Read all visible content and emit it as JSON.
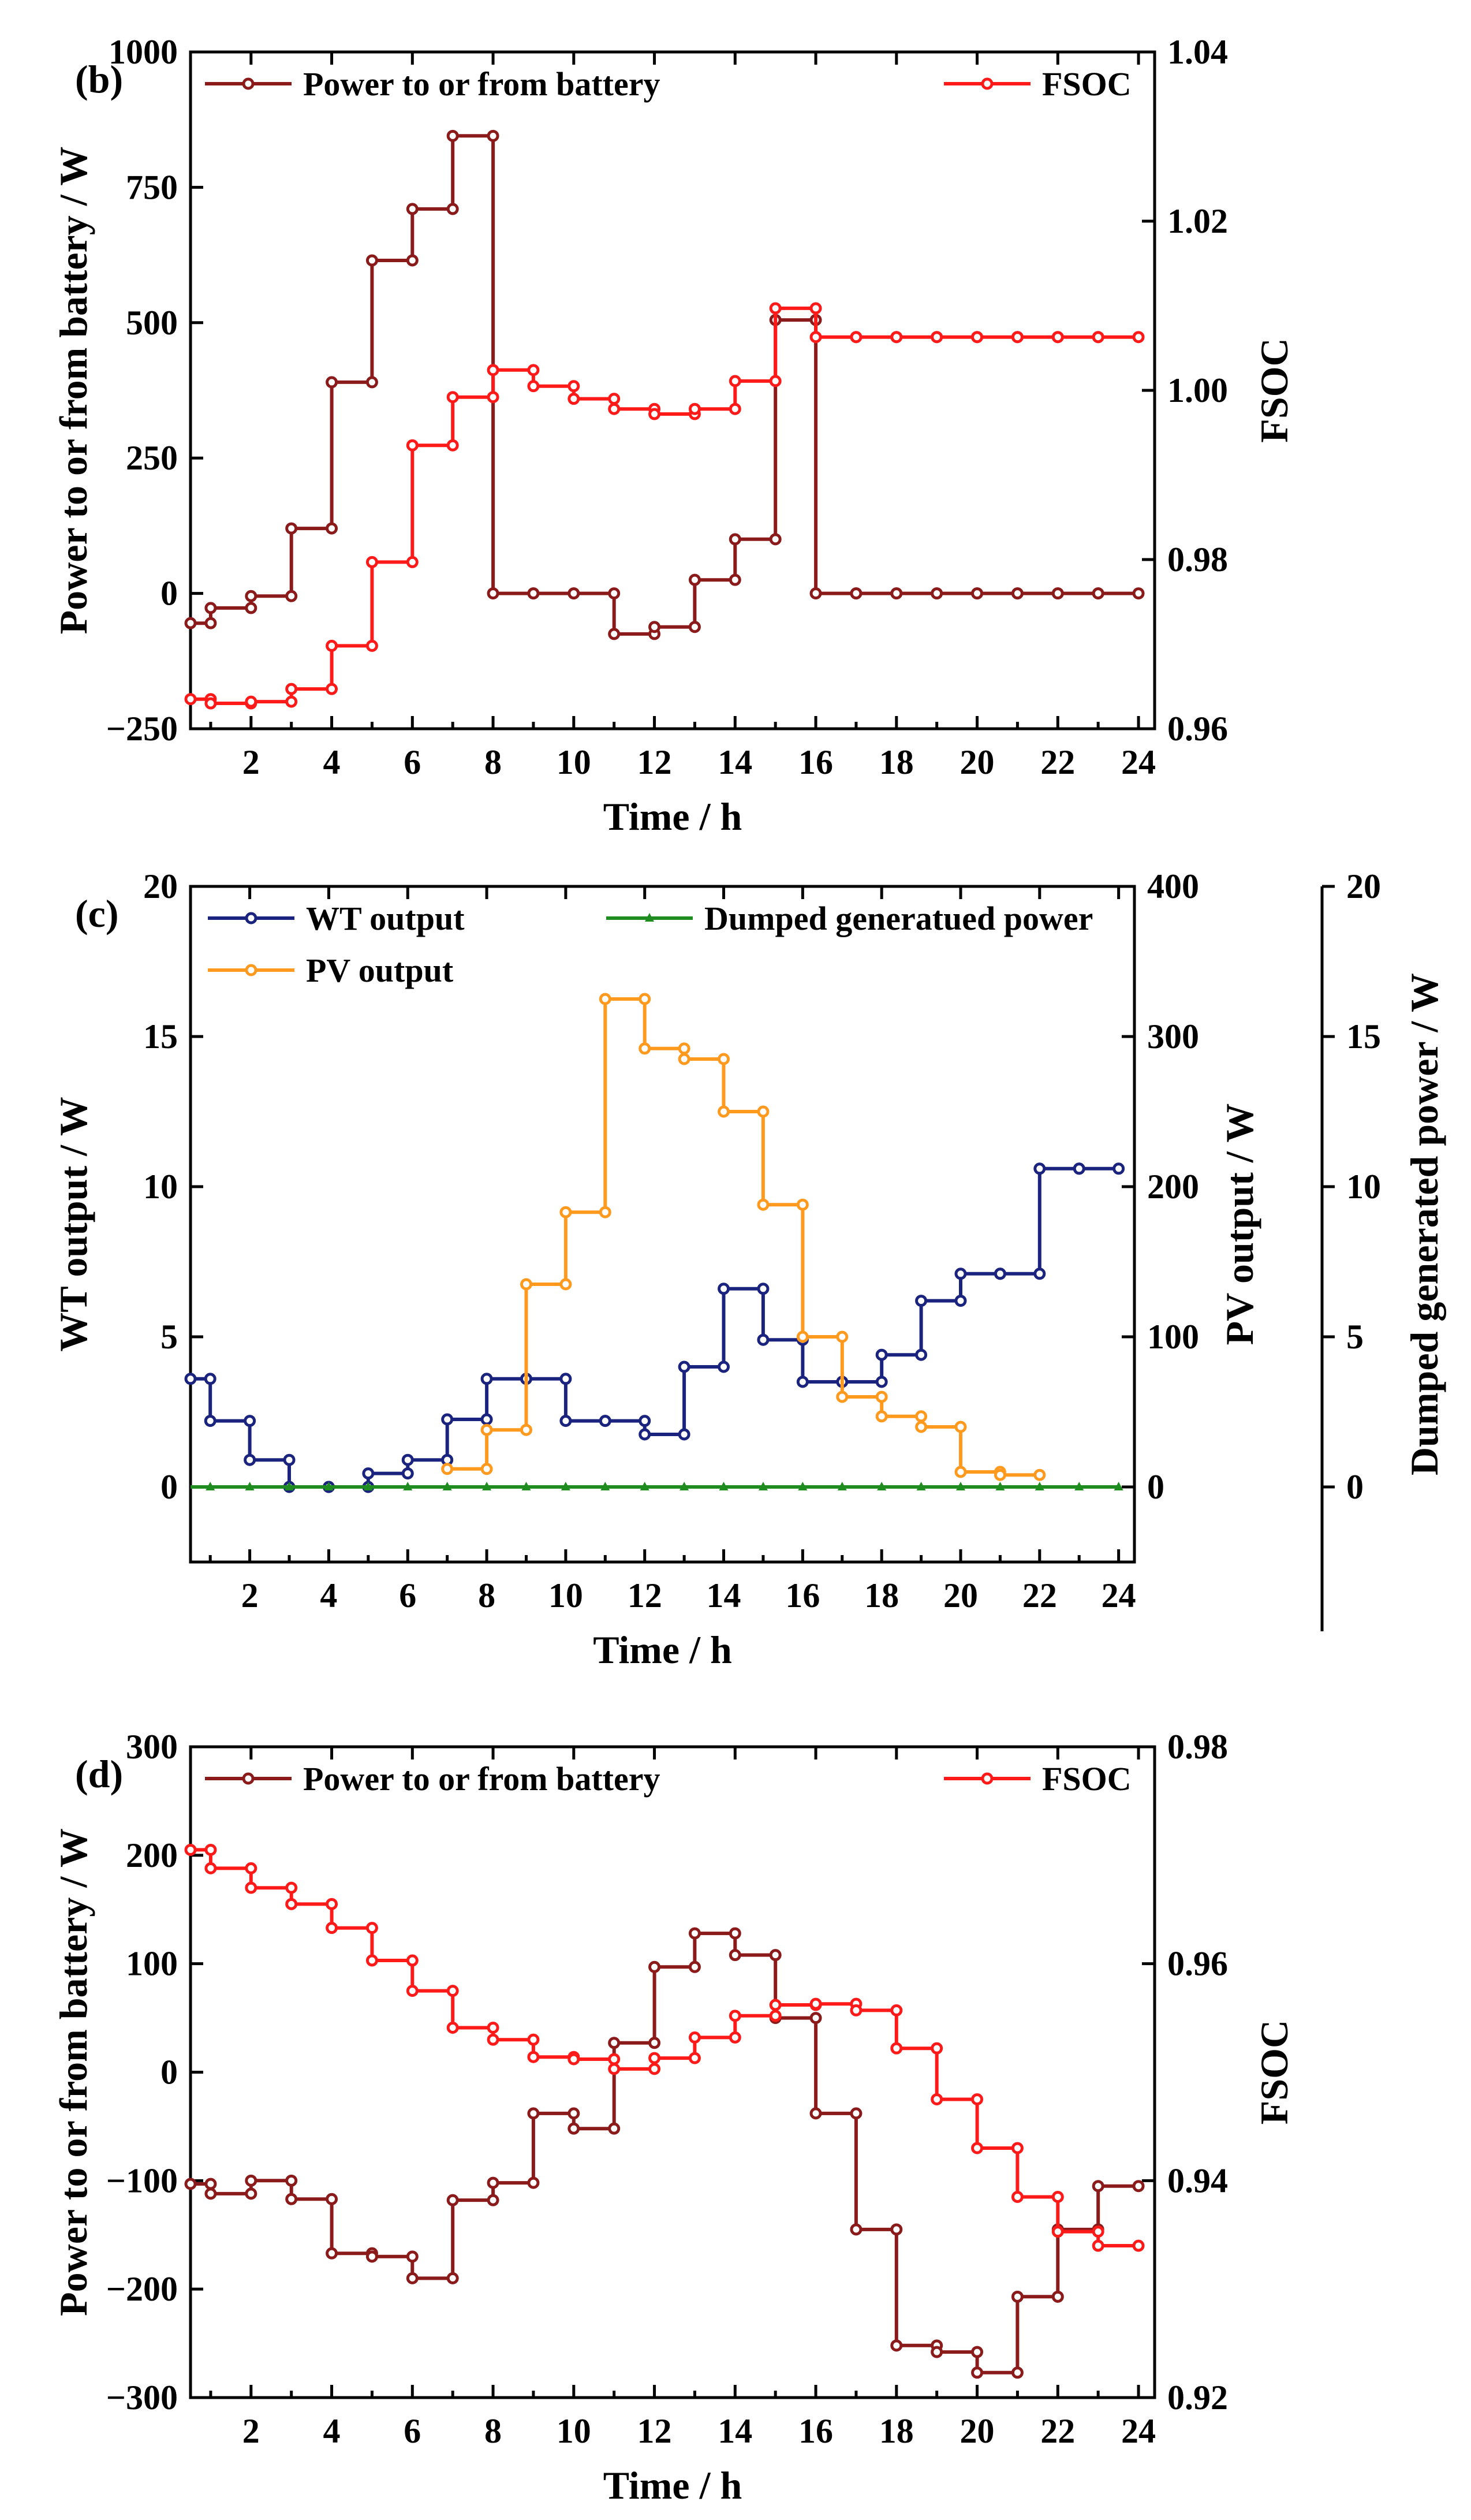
{
  "chart_data": [
    {
      "panel": "(b)",
      "type": "line",
      "step": true,
      "xlabel": "Time / h",
      "ylabel": "Power to or from battery / W",
      "y2label": "FSOC",
      "xlim": [
        0.5,
        24.4
      ],
      "xticks": [
        2,
        4,
        6,
        8,
        10,
        12,
        14,
        16,
        18,
        20,
        22,
        24
      ],
      "ylim": [
        -250,
        1000
      ],
      "yticks": [
        -250,
        0,
        250,
        500,
        750,
        1000
      ],
      "y2lim": [
        0.96,
        1.04
      ],
      "y2ticks": [
        0.96,
        0.98,
        1.0,
        1.02,
        1.04
      ],
      "series": [
        {
          "name": "Power to or from battery",
          "axis": "left",
          "color": "#8B1A1A",
          "values": [
            -55,
            -27,
            -5,
            120,
            390,
            615,
            710,
            845,
            0,
            0,
            0,
            -75,
            -62,
            25,
            100,
            505,
            0,
            0,
            0,
            0,
            0,
            0,
            0,
            0
          ]
        },
        {
          "name": "FSOC",
          "axis": "right",
          "color": "#FF1A1A",
          "values": [
            0.9635,
            0.963,
            0.9632,
            0.9647,
            0.9698,
            0.9797,
            0.9935,
            0.9992,
            1.0024,
            1.0005,
            0.999,
            0.9978,
            0.9972,
            0.9978,
            1.0011,
            1.0097,
            1.0063,
            1.0063,
            1.0063,
            1.0063,
            1.0063,
            1.0063,
            1.0063,
            1.0063
          ]
        }
      ]
    },
    {
      "panel": "(c)",
      "type": "line",
      "step": true,
      "xlabel": "Time / h",
      "ylabel": "WT output / W",
      "y2label": "PV output / W",
      "y3label": "Dumped generated power / W",
      "xlim": [
        0.5,
        24.4
      ],
      "xticks": [
        2,
        4,
        6,
        8,
        10,
        12,
        14,
        16,
        18,
        20,
        22,
        24
      ],
      "ylim": [
        -2.5,
        20
      ],
      "yticks": [
        0,
        5,
        10,
        15,
        20
      ],
      "y2lim": [
        -50,
        400
      ],
      "y2ticks": [
        0,
        100,
        200,
        300,
        400
      ],
      "y3lim": [
        -2.5,
        20
      ],
      "y3ticks": [
        0,
        5,
        10,
        15,
        20
      ],
      "series": [
        {
          "name": "WT output",
          "axis": "left",
          "color": "#1A237E",
          "values": [
            3.6,
            2.2,
            0.9,
            0,
            0,
            0.45,
            0.9,
            2.25,
            3.6,
            3.6,
            2.2,
            2.2,
            1.75,
            4.0,
            6.6,
            4.9,
            3.5,
            3.5,
            4.4,
            6.2,
            7.1,
            7.1,
            10.6,
            10.6
          ],
          "x_start": 0.5
        },
        {
          "name": "PV output",
          "axis": "y2",
          "color": "#FF9A1F",
          "values": [
            12,
            38,
            135,
            183,
            325,
            292,
            285,
            250,
            188,
            100,
            60,
            47,
            40,
            10,
            8
          ],
          "x_start": 7
        },
        {
          "name": "Dumped generatued power",
          "axis": "y3",
          "color": "#1E8C1E",
          "values": [
            0,
            0,
            0,
            0,
            0,
            0,
            0,
            0,
            0,
            0,
            0,
            0,
            0,
            0,
            0,
            0,
            0,
            0,
            0,
            0,
            0,
            0,
            0,
            0
          ],
          "x_start": 0.5
        }
      ]
    },
    {
      "panel": "(d)",
      "type": "line",
      "step": true,
      "xlabel": "Time / h",
      "ylabel": "Power to or from battery / W",
      "y2label": "FSOC",
      "xlim": [
        0.5,
        24.4
      ],
      "xticks": [
        2,
        4,
        6,
        8,
        10,
        12,
        14,
        16,
        18,
        20,
        22,
        24
      ],
      "ylim": [
        -300,
        300
      ],
      "yticks": [
        -300,
        -200,
        -100,
        0,
        100,
        200,
        300
      ],
      "y2lim": [
        0.92,
        0.98
      ],
      "y2ticks": [
        0.92,
        0.94,
        0.96,
        0.98
      ],
      "series": [
        {
          "name": "Power to or from battery",
          "axis": "left",
          "color": "#8B1A1A",
          "values": [
            -103,
            -112,
            -100,
            -117,
            -167,
            -170,
            -190,
            -118,
            -102,
            -38,
            -52,
            27,
            97,
            128,
            108,
            50,
            -38,
            -145,
            -252,
            -258,
            -277,
            -207,
            -145,
            -105
          ]
        },
        {
          "name": "FSOC",
          "axis": "right",
          "color": "#FF1A1A",
          "values": [
            0.9705,
            0.9688,
            0.967,
            0.9655,
            0.9633,
            0.9603,
            0.9575,
            0.9541,
            0.953,
            0.9514,
            0.9512,
            0.9503,
            0.9513,
            0.9532,
            0.9552,
            0.9562,
            0.9563,
            0.9557,
            0.9522,
            0.9475,
            0.943,
            0.9385,
            0.9353,
            0.934
          ]
        }
      ]
    }
  ]
}
